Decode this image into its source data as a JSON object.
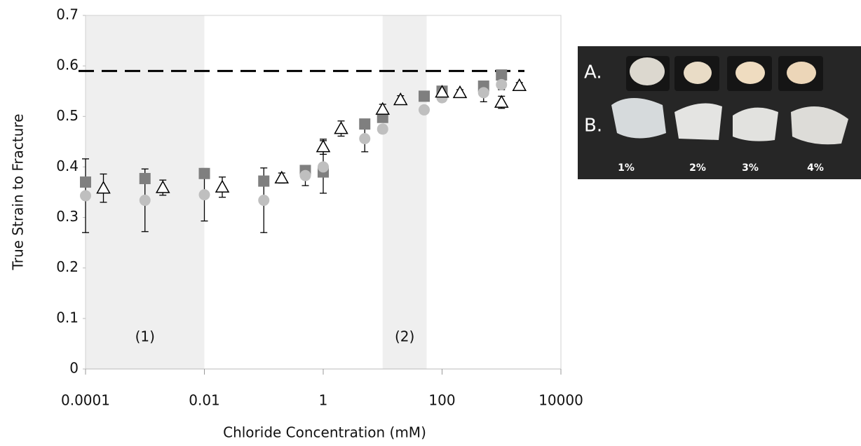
{
  "chart_data": {
    "type": "scatter",
    "x_label": "Chloride Concentration  (mM)",
    "y_label": "True Strain to Fracture",
    "xlim": [
      0.0001,
      10000
    ],
    "xticks": [
      0.0001,
      0.01,
      1,
      100,
      10000
    ],
    "xscale": "log",
    "ylim": [
      0,
      0.7
    ],
    "yticks": [
      0,
      0.1,
      0.2,
      0.3,
      0.4,
      0.5,
      0.6,
      0.7
    ],
    "reference_line": 0.59,
    "shaded_regions": [
      {
        "x": [
          0.0001,
          0.01
        ],
        "label": "(1)"
      },
      {
        "x": [
          10,
          55
        ],
        "label": "(2)"
      }
    ],
    "series": [
      {
        "marker": "square",
        "color": "#7f7f7f",
        "x": [
          0.0001,
          0.001,
          0.01,
          0.1,
          0.5,
          1,
          5,
          10,
          50,
          100,
          500,
          1000
        ],
        "values": [
          0.37,
          0.377,
          0.387,
          0.372,
          0.393,
          0.39,
          0.485,
          0.498,
          0.54,
          0.55,
          0.56,
          0.582
        ]
      },
      {
        "marker": "circle",
        "color": "#bfbfbf",
        "x": [
          0.0001,
          0.001,
          0.01,
          0.1,
          0.5,
          1,
          5,
          10,
          50,
          100,
          500,
          1000
        ],
        "values": [
          0.343,
          0.334,
          0.345,
          0.334,
          0.383,
          0.4,
          0.456,
          0.475,
          0.513,
          0.537,
          0.547,
          0.563
        ],
        "errors": [
          0.073,
          0.062,
          0.052,
          0.064,
          0.02,
          0.052,
          0.026,
          0.008,
          0.005,
          0.008,
          0.018,
          0.01
        ]
      },
      {
        "marker": "triangle",
        "color": "#000000",
        "x": [
          0.0002,
          0.002,
          0.02,
          0.2,
          1,
          2,
          10,
          20,
          100,
          200,
          1000,
          2000
        ],
        "values": [
          0.358,
          0.359,
          0.36,
          0.378,
          0.44,
          0.476,
          0.514,
          0.533,
          0.548,
          0.547,
          0.528,
          0.561
        ],
        "errors": [
          0.028,
          0.015,
          0.02,
          0.01,
          0.015,
          0.015,
          0.01,
          0.008,
          0.008,
          0.006,
          0.012,
          0.006
        ]
      }
    ]
  },
  "inset": {
    "row_labels": [
      "A.",
      "B."
    ],
    "column_labels": [
      "1%",
      "2%",
      "3%",
      "4%"
    ]
  }
}
